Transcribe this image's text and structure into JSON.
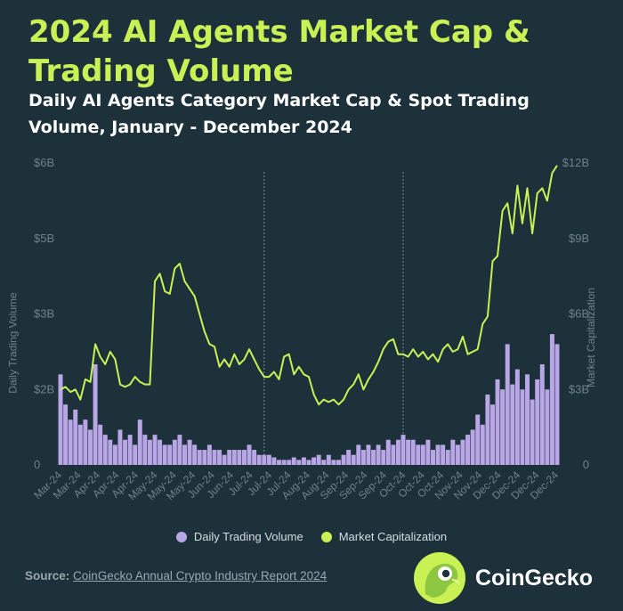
{
  "title": "2024 AI Agents Market Cap & Trading Volume",
  "subtitle": "Daily AI Agents Category Market Cap & Spot Trading Volume, January - December 2024",
  "footer": {
    "source_label": "Source:",
    "source_text": "CoinGecko Annual Crypto Industry Report 2024"
  },
  "brand": {
    "name": "CoinGecko",
    "logo_icon": "gecko-logo-icon"
  },
  "colors": {
    "background": "#1c3139",
    "title": "#c9f155",
    "volume": "#b9a6e6",
    "market_cap": "#c9f155",
    "axis_text": "#6f8189"
  },
  "chart_data": {
    "type": "bar+line",
    "y_left": {
      "label": "Daily Trading Volume",
      "ticks": [
        "0",
        "$2B",
        "$3B",
        "$5B",
        "$6B"
      ],
      "range": [
        0,
        6
      ]
    },
    "y_right": {
      "label": "Market Capitalization",
      "ticks": [
        "0",
        "$3B",
        "$6B",
        "$9B",
        "$12B"
      ],
      "range": [
        0,
        12
      ]
    },
    "x_ticks": [
      "Mar-24",
      "Mar-24",
      "Apr-24",
      "Apr-24",
      "Apr-24",
      "May-24",
      "May-24",
      "May-24",
      "Jun-24",
      "Jun-24",
      "Jul-24",
      "Jul-24",
      "Jul-24",
      "Aug-24",
      "Aug-24",
      "Sep-24",
      "Sep-24",
      "Sep-24",
      "Oct-24",
      "Oct-24",
      "Oct-24",
      "Nov-24",
      "Nov-24",
      "Dec-24",
      "Dec-24",
      "Dec-24",
      "Dec-24"
    ],
    "legend": [
      "Daily Trading Volume",
      "Market Capitalization"
    ],
    "legend_position": "bottom",
    "vertical_markers_x": [
      0.41,
      0.69
    ],
    "series": [
      {
        "name": "Market Capitalization",
        "axis": "right",
        "points": [
          [
            0,
            3.0
          ],
          [
            0.01,
            3.1
          ],
          [
            0.02,
            2.9
          ],
          [
            0.03,
            3.0
          ],
          [
            0.04,
            2.6
          ],
          [
            0.05,
            3.4
          ],
          [
            0.06,
            3.3
          ],
          [
            0.07,
            4.8
          ],
          [
            0.08,
            4.3
          ],
          [
            0.09,
            4.0
          ],
          [
            0.1,
            4.5
          ],
          [
            0.11,
            4.2
          ],
          [
            0.12,
            3.2
          ],
          [
            0.13,
            3.1
          ],
          [
            0.14,
            3.2
          ],
          [
            0.15,
            3.5
          ],
          [
            0.16,
            3.3
          ],
          [
            0.17,
            3.2
          ],
          [
            0.18,
            3.2
          ],
          [
            0.19,
            7.3
          ],
          [
            0.2,
            7.6
          ],
          [
            0.21,
            6.9
          ],
          [
            0.22,
            6.8
          ],
          [
            0.23,
            7.8
          ],
          [
            0.24,
            8.0
          ],
          [
            0.25,
            7.3
          ],
          [
            0.26,
            7.0
          ],
          [
            0.27,
            6.7
          ],
          [
            0.28,
            6.0
          ],
          [
            0.29,
            5.3
          ],
          [
            0.3,
            4.8
          ],
          [
            0.31,
            4.7
          ],
          [
            0.32,
            3.9
          ],
          [
            0.33,
            4.2
          ],
          [
            0.34,
            3.9
          ],
          [
            0.35,
            4.4
          ],
          [
            0.36,
            4.0
          ],
          [
            0.37,
            4.2
          ],
          [
            0.38,
            4.6
          ],
          [
            0.39,
            4.2
          ],
          [
            0.4,
            3.8
          ],
          [
            0.41,
            3.5
          ],
          [
            0.42,
            3.5
          ],
          [
            0.43,
            3.7
          ],
          [
            0.44,
            3.4
          ],
          [
            0.45,
            4.3
          ],
          [
            0.46,
            4.4
          ],
          [
            0.47,
            3.6
          ],
          [
            0.48,
            3.9
          ],
          [
            0.49,
            3.6
          ],
          [
            0.5,
            3.5
          ],
          [
            0.51,
            2.8
          ],
          [
            0.52,
            2.4
          ],
          [
            0.53,
            2.6
          ],
          [
            0.54,
            2.5
          ],
          [
            0.55,
            2.6
          ],
          [
            0.56,
            2.4
          ],
          [
            0.57,
            2.6
          ],
          [
            0.58,
            3.0
          ],
          [
            0.59,
            3.2
          ],
          [
            0.6,
            3.6
          ],
          [
            0.61,
            3.0
          ],
          [
            0.62,
            3.4
          ],
          [
            0.63,
            3.7
          ],
          [
            0.64,
            4.1
          ],
          [
            0.65,
            4.6
          ],
          [
            0.66,
            4.9
          ],
          [
            0.67,
            5.0
          ],
          [
            0.68,
            4.4
          ],
          [
            0.69,
            4.4
          ],
          [
            0.7,
            4.3
          ],
          [
            0.71,
            4.6
          ],
          [
            0.72,
            4.3
          ],
          [
            0.73,
            4.5
          ],
          [
            0.74,
            4.2
          ],
          [
            0.75,
            4.4
          ],
          [
            0.76,
            4.1
          ],
          [
            0.77,
            4.6
          ],
          [
            0.78,
            4.8
          ],
          [
            0.79,
            4.5
          ],
          [
            0.8,
            4.6
          ],
          [
            0.81,
            5.1
          ],
          [
            0.82,
            4.4
          ],
          [
            0.83,
            4.5
          ],
          [
            0.84,
            4.6
          ],
          [
            0.85,
            5.6
          ],
          [
            0.86,
            5.9
          ],
          [
            0.87,
            8.1
          ],
          [
            0.88,
            8.3
          ],
          [
            0.89,
            10.1
          ],
          [
            0.9,
            10.4
          ],
          [
            0.91,
            9.2
          ],
          [
            0.92,
            11.1
          ],
          [
            0.93,
            9.6
          ],
          [
            0.94,
            11.0
          ],
          [
            0.95,
            9.2
          ],
          [
            0.96,
            10.8
          ],
          [
            0.97,
            11.0
          ],
          [
            0.98,
            10.5
          ],
          [
            0.99,
            11.6
          ],
          [
            1.0,
            11.9
          ]
        ]
      },
      {
        "name": "Daily Trading Volume",
        "axis": "left",
        "x": [
          0,
          0.01,
          0.02,
          0.03,
          0.04,
          0.05,
          0.06,
          0.07,
          0.08,
          0.09,
          0.1,
          0.11,
          0.12,
          0.13,
          0.14,
          0.15,
          0.16,
          0.17,
          0.18,
          0.19,
          0.2,
          0.21,
          0.22,
          0.23,
          0.24,
          0.25,
          0.26,
          0.27,
          0.28,
          0.29,
          0.3,
          0.31,
          0.32,
          0.33,
          0.34,
          0.35,
          0.36,
          0.37,
          0.38,
          0.39,
          0.4,
          0.41,
          0.42,
          0.43,
          0.44,
          0.45,
          0.46,
          0.47,
          0.48,
          0.49,
          0.5,
          0.51,
          0.52,
          0.53,
          0.54,
          0.55,
          0.56,
          0.57,
          0.58,
          0.59,
          0.6,
          0.61,
          0.62,
          0.63,
          0.64,
          0.65,
          0.66,
          0.67,
          0.68,
          0.69,
          0.7,
          0.71,
          0.72,
          0.73,
          0.74,
          0.75,
          0.76,
          0.77,
          0.78,
          0.79,
          0.8,
          0.81,
          0.82,
          0.83,
          0.84,
          0.85,
          0.86,
          0.87,
          0.88,
          0.89,
          0.9,
          0.91,
          0.92,
          0.93,
          0.94,
          0.95,
          0.96,
          0.97,
          0.98,
          0.99,
          1.0
        ],
        "values": [
          1.8,
          1.2,
          0.9,
          1.1,
          0.8,
          0.9,
          0.7,
          2.0,
          0.8,
          0.6,
          0.5,
          0.4,
          0.7,
          0.5,
          0.6,
          0.4,
          0.9,
          0.6,
          0.5,
          0.6,
          0.5,
          0.4,
          0.4,
          0.5,
          0.6,
          0.4,
          0.5,
          0.4,
          0.3,
          0.3,
          0.4,
          0.3,
          0.3,
          0.2,
          0.3,
          0.3,
          0.3,
          0.3,
          0.4,
          0.3,
          0.2,
          0.2,
          0.2,
          0.15,
          0.1,
          0.1,
          0.1,
          0.15,
          0.1,
          0.15,
          0.1,
          0.15,
          0.2,
          0.1,
          0.2,
          0.1,
          0.1,
          0.2,
          0.3,
          0.2,
          0.4,
          0.3,
          0.4,
          0.3,
          0.4,
          0.3,
          0.5,
          0.4,
          0.5,
          0.6,
          0.5,
          0.5,
          0.4,
          0.4,
          0.5,
          0.3,
          0.4,
          0.4,
          0.3,
          0.5,
          0.4,
          0.5,
          0.6,
          0.7,
          1.0,
          0.8,
          1.4,
          1.2,
          1.7,
          1.5,
          2.4,
          1.6,
          1.9,
          1.5,
          1.8,
          1.3,
          1.7,
          2.0,
          1.5,
          2.6,
          2.4
        ]
      }
    ],
    "grid": false
  }
}
